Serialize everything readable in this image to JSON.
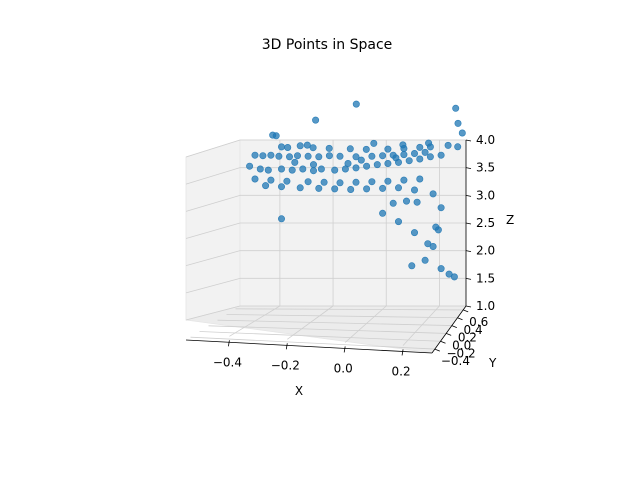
{
  "chart_data": {
    "type": "scatter3d",
    "title": "3D Points in Space",
    "xlabel": "X",
    "ylabel": "Y",
    "zlabel": "Z",
    "xlim": [
      -0.55,
      0.3
    ],
    "ylim": [
      -0.5,
      0.7
    ],
    "zlim": [
      1.0,
      4.0
    ],
    "x_ticks": [
      -0.4,
      -0.2,
      0.0,
      0.2
    ],
    "y_ticks": [
      -0.4,
      -0.2,
      0.0,
      0.2,
      0.4,
      0.6
    ],
    "z_ticks": [
      1.0,
      1.5,
      2.0,
      2.5,
      3.0,
      3.5,
      4.0
    ],
    "x_tick_labels": [
      "−0.4",
      "−0.2",
      "0.0",
      "0.2"
    ],
    "y_tick_labels": [
      "−0.4",
      "−0.2",
      "0.0",
      "0.2",
      "0.4",
      "0.6"
    ],
    "z_tick_labels": [
      "1.0",
      "1.5",
      "2.0",
      "2.5",
      "3.0",
      "3.5",
      "4.0"
    ],
    "grid": true,
    "marker_color": "#1f77b4",
    "points": [
      {
        "x": -0.1,
        "y": 0.3,
        "z": 4.6
      },
      {
        "x": -0.25,
        "y": 0.35,
        "z": 4.3
      },
      {
        "x": -0.42,
        "y": 0.0,
        "z": 4.1
      },
      {
        "x": -0.43,
        "y": 0.05,
        "z": 4.1
      },
      {
        "x": 0.28,
        "y": 0.4,
        "z": 4.5
      },
      {
        "x": 0.27,
        "y": 0.1,
        "z": 4.3
      },
      {
        "x": 0.28,
        "y": 0.0,
        "z": 4.15
      },
      {
        "x": 0.25,
        "y": -0.2,
        "z": 3.95
      },
      {
        "x": 0.22,
        "y": -0.1,
        "z": 3.95
      },
      {
        "x": 0.15,
        "y": -0.05,
        "z": 3.98
      },
      {
        "x": 0.05,
        "y": -0.1,
        "z": 3.96
      },
      {
        "x": -0.05,
        "y": 0.05,
        "z": 3.95
      },
      {
        "x": -0.3,
        "y": 0.05,
        "z": 3.92
      },
      {
        "x": -0.33,
        "y": 0.0,
        "z": 3.92
      },
      {
        "x": -0.4,
        "y": 0.0,
        "z": 3.9
      },
      {
        "x": -0.38,
        "y": -0.05,
        "z": 3.9
      },
      {
        "x": -0.28,
        "y": 0.02,
        "z": 3.88
      },
      {
        "x": -0.22,
        "y": 0.01,
        "z": 3.87
      },
      {
        "x": -0.14,
        "y": 0.02,
        "z": 3.86
      },
      {
        "x": -0.08,
        "y": 0.02,
        "z": 3.85
      },
      {
        "x": 0.0,
        "y": 0.0,
        "z": 3.86
      },
      {
        "x": 0.06,
        "y": 0.0,
        "z": 3.87
      },
      {
        "x": 0.12,
        "y": 0.0,
        "z": 3.89
      },
      {
        "x": 0.16,
        "y": 0.0,
        "z": 3.9
      },
      {
        "x": -0.5,
        "y": 0.0,
        "z": 3.75
      },
      {
        "x": -0.47,
        "y": 0.0,
        "z": 3.74
      },
      {
        "x": -0.44,
        "y": 0.0,
        "z": 3.75
      },
      {
        "x": -0.41,
        "y": 0.0,
        "z": 3.73
      },
      {
        "x": -0.37,
        "y": 0.0,
        "z": 3.72
      },
      {
        "x": -0.34,
        "y": 0.0,
        "z": 3.74
      },
      {
        "x": -0.3,
        "y": 0.0,
        "z": 3.73
      },
      {
        "x": -0.26,
        "y": 0.0,
        "z": 3.72
      },
      {
        "x": -0.22,
        "y": 0.0,
        "z": 3.74
      },
      {
        "x": -0.18,
        "y": 0.0,
        "z": 3.73
      },
      {
        "x": -0.12,
        "y": 0.0,
        "z": 3.72
      },
      {
        "x": -0.06,
        "y": 0.0,
        "z": 3.73
      },
      {
        "x": -0.02,
        "y": 0.0,
        "z": 3.74
      },
      {
        "x": 0.02,
        "y": 0.0,
        "z": 3.75
      },
      {
        "x": 0.06,
        "y": 0.0,
        "z": 3.76
      },
      {
        "x": 0.1,
        "y": 0.0,
        "z": 3.78
      },
      {
        "x": 0.14,
        "y": 0.0,
        "z": 3.8
      },
      {
        "x": -0.52,
        "y": 0.0,
        "z": 3.55
      },
      {
        "x": -0.48,
        "y": 0.0,
        "z": 3.5
      },
      {
        "x": -0.45,
        "y": 0.0,
        "z": 3.48
      },
      {
        "x": -0.4,
        "y": 0.0,
        "z": 3.5
      },
      {
        "x": -0.36,
        "y": 0.0,
        "z": 3.48
      },
      {
        "x": -0.32,
        "y": 0.0,
        "z": 3.5
      },
      {
        "x": -0.28,
        "y": 0.0,
        "z": 3.47
      },
      {
        "x": -0.25,
        "y": 0.0,
        "z": 3.5
      },
      {
        "x": -0.2,
        "y": 0.0,
        "z": 3.48
      },
      {
        "x": -0.16,
        "y": 0.0,
        "z": 3.5
      },
      {
        "x": -0.12,
        "y": 0.0,
        "z": 3.52
      },
      {
        "x": -0.08,
        "y": 0.0,
        "z": 3.55
      },
      {
        "x": -0.04,
        "y": 0.0,
        "z": 3.58
      },
      {
        "x": 0.0,
        "y": 0.0,
        "z": 3.6
      },
      {
        "x": 0.04,
        "y": 0.0,
        "z": 3.62
      },
      {
        "x": 0.08,
        "y": 0.0,
        "z": 3.65
      },
      {
        "x": 0.12,
        "y": 0.0,
        "z": 3.68
      },
      {
        "x": 0.16,
        "y": 0.0,
        "z": 3.72
      },
      {
        "x": 0.2,
        "y": 0.0,
        "z": 3.75
      },
      {
        "x": -0.5,
        "y": 0.0,
        "z": 3.32
      },
      {
        "x": -0.44,
        "y": 0.0,
        "z": 3.3
      },
      {
        "x": -0.38,
        "y": 0.0,
        "z": 3.28
      },
      {
        "x": -0.3,
        "y": 0.0,
        "z": 3.27
      },
      {
        "x": -0.24,
        "y": 0.0,
        "z": 3.26
      },
      {
        "x": -0.18,
        "y": 0.0,
        "z": 3.25
      },
      {
        "x": -0.12,
        "y": 0.0,
        "z": 3.26
      },
      {
        "x": -0.06,
        "y": 0.0,
        "z": 3.27
      },
      {
        "x": 0.0,
        "y": 0.0,
        "z": 3.28
      },
      {
        "x": 0.06,
        "y": 0.0,
        "z": 3.3
      },
      {
        "x": 0.12,
        "y": 0.0,
        "z": 3.32
      },
      {
        "x": -0.46,
        "y": 0.0,
        "z": 3.2
      },
      {
        "x": -0.4,
        "y": 0.0,
        "z": 3.18
      },
      {
        "x": -0.33,
        "y": 0.0,
        "z": 3.16
      },
      {
        "x": -0.26,
        "y": 0.0,
        "z": 3.15
      },
      {
        "x": -0.2,
        "y": 0.0,
        "z": 3.14
      },
      {
        "x": -0.14,
        "y": 0.0,
        "z": 3.13
      },
      {
        "x": -0.08,
        "y": 0.0,
        "z": 3.14
      },
      {
        "x": -0.02,
        "y": 0.0,
        "z": 3.15
      },
      {
        "x": 0.04,
        "y": 0.0,
        "z": 3.16
      },
      {
        "x": 0.1,
        "y": 0.0,
        "z": 3.12
      },
      {
        "x": 0.17,
        "y": 0.0,
        "z": 3.05
      },
      {
        "x": 0.02,
        "y": 0.0,
        "z": 2.88
      },
      {
        "x": 0.07,
        "y": 0.0,
        "z": 2.92
      },
      {
        "x": 0.11,
        "y": 0.0,
        "z": 2.9
      },
      {
        "x": 0.2,
        "y": 0.0,
        "z": 2.8
      },
      {
        "x": 0.04,
        "y": 0.0,
        "z": 2.55
      },
      {
        "x": 0.1,
        "y": 0.0,
        "z": 2.35
      },
      {
        "x": 0.18,
        "y": 0.0,
        "z": 2.45
      },
      {
        "x": 0.19,
        "y": 0.0,
        "z": 2.4
      },
      {
        "x": 0.15,
        "y": 0.0,
        "z": 2.15
      },
      {
        "x": 0.17,
        "y": 0.0,
        "z": 2.1
      },
      {
        "x": 0.14,
        "y": 0.0,
        "z": 1.85
      },
      {
        "x": 0.2,
        "y": 0.0,
        "z": 1.7
      },
      {
        "x": 0.23,
        "y": 0.0,
        "z": 1.6
      },
      {
        "x": 0.25,
        "y": 0.0,
        "z": 1.55
      },
      {
        "x": -0.4,
        "y": 0.0,
        "z": 2.6
      },
      {
        "x": -0.02,
        "y": 0.0,
        "z": 2.7
      },
      {
        "x": 0.09,
        "y": 0.0,
        "z": 1.75
      },
      {
        "x": -0.15,
        "y": 0.0,
        "z": 3.6
      },
      {
        "x": -0.35,
        "y": 0.0,
        "z": 3.62
      },
      {
        "x": -0.28,
        "y": 0.0,
        "z": 3.58
      },
      {
        "x": -0.1,
        "y": 0.0,
        "z": 3.66
      },
      {
        "x": 0.03,
        "y": 0.0,
        "z": 3.7
      }
    ]
  }
}
